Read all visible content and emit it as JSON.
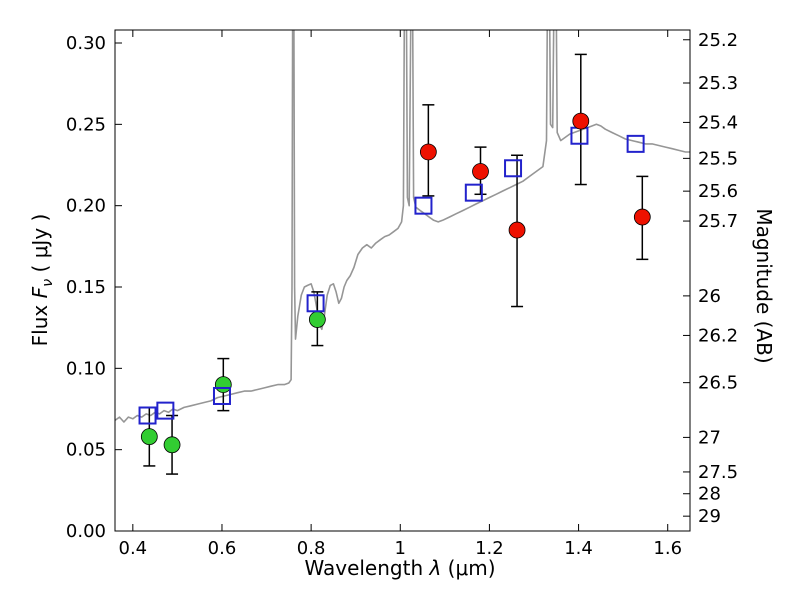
{
  "chart_data": {
    "type": "line",
    "title": "",
    "xlabel": "Wavelength λ (μm)",
    "xlabel_parts": {
      "prefix": "Wavelength ",
      "symbol": "λ",
      "suffix": " (μm)"
    },
    "ylabel_left": "Flux Fν ( μJy )",
    "ylabel_left_parts": {
      "prefix": "Flux ",
      "symbol": "F",
      "subscript": "ν",
      "suffix": " ( μJy )"
    },
    "ylabel_right": "Magnitude (AB)",
    "xlim": [
      0.36,
      1.65
    ],
    "ylim": [
      0.0,
      0.308
    ],
    "grid": false,
    "legend": null,
    "xticks": {
      "values": [
        0.4,
        0.6,
        0.8,
        1.0,
        1.2,
        1.4,
        1.6
      ],
      "labels": [
        "0.4",
        "0.6",
        "0.8",
        "1",
        "1.2",
        "1.4",
        "1.6"
      ]
    },
    "yticks_left": {
      "values": [
        0.0,
        0.05,
        0.1,
        0.15,
        0.2,
        0.25,
        0.3
      ],
      "labels": [
        "0.00",
        "0.05",
        "0.10",
        "0.15",
        "0.20",
        "0.25",
        "0.30"
      ]
    },
    "yticks_right": {
      "ab_zeropoint_microjansky": 23.9,
      "magnitudes": [
        25.2,
        25.3,
        25.4,
        25.5,
        25.6,
        25.7,
        26.0,
        26.2,
        26.5,
        27.0,
        27.5,
        28.0,
        29.0
      ],
      "labels": [
        "25.2",
        "25.3",
        "25.4",
        "25.5",
        "25.6",
        "25.7",
        "26",
        "26.2",
        "26.5",
        "27",
        "27.5",
        "28",
        "29"
      ]
    },
    "series": [
      {
        "name": "model_spectrum",
        "type": "line",
        "color": "#969696",
        "linewidth": 1.6,
        "points": [
          [
            0.36,
            0.068
          ],
          [
            0.37,
            0.07
          ],
          [
            0.38,
            0.067
          ],
          [
            0.39,
            0.07
          ],
          [
            0.4,
            0.069
          ],
          [
            0.41,
            0.071
          ],
          [
            0.42,
            0.07
          ],
          [
            0.43,
            0.072
          ],
          [
            0.44,
            0.071
          ],
          [
            0.45,
            0.073
          ],
          [
            0.46,
            0.072
          ],
          [
            0.47,
            0.074
          ],
          [
            0.48,
            0.073
          ],
          [
            0.49,
            0.075
          ],
          [
            0.5,
            0.074
          ],
          [
            0.515,
            0.076
          ],
          [
            0.53,
            0.077
          ],
          [
            0.545,
            0.078
          ],
          [
            0.56,
            0.079
          ],
          [
            0.575,
            0.08
          ],
          [
            0.59,
            0.082
          ],
          [
            0.605,
            0.083
          ],
          [
            0.62,
            0.084
          ],
          [
            0.635,
            0.085
          ],
          [
            0.65,
            0.086
          ],
          [
            0.665,
            0.086
          ],
          [
            0.68,
            0.087
          ],
          [
            0.695,
            0.088
          ],
          [
            0.71,
            0.089
          ],
          [
            0.725,
            0.09
          ],
          [
            0.74,
            0.09
          ],
          [
            0.75,
            0.091
          ],
          [
            0.755,
            0.093
          ],
          [
            0.757,
            0.15
          ],
          [
            0.759,
            0.36
          ],
          [
            0.761,
            0.36
          ],
          [
            0.763,
            0.15
          ],
          [
            0.765,
            0.118
          ],
          [
            0.77,
            0.132
          ],
          [
            0.778,
            0.145
          ],
          [
            0.785,
            0.15
          ],
          [
            0.792,
            0.151
          ],
          [
            0.8,
            0.152
          ],
          [
            0.806,
            0.147
          ],
          [
            0.812,
            0.138
          ],
          [
            0.818,
            0.128
          ],
          [
            0.824,
            0.124
          ],
          [
            0.83,
            0.133
          ],
          [
            0.836,
            0.145
          ],
          [
            0.843,
            0.151
          ],
          [
            0.85,
            0.152
          ],
          [
            0.856,
            0.147
          ],
          [
            0.862,
            0.14
          ],
          [
            0.868,
            0.143
          ],
          [
            0.874,
            0.15
          ],
          [
            0.88,
            0.154
          ],
          [
            0.888,
            0.157
          ],
          [
            0.896,
            0.162
          ],
          [
            0.905,
            0.17
          ],
          [
            0.915,
            0.174
          ],
          [
            0.925,
            0.176
          ],
          [
            0.935,
            0.174
          ],
          [
            0.945,
            0.177
          ],
          [
            0.955,
            0.179
          ],
          [
            0.965,
            0.181
          ],
          [
            0.975,
            0.182
          ],
          [
            0.985,
            0.184
          ],
          [
            0.995,
            0.186
          ],
          [
            1.003,
            0.19
          ],
          [
            1.007,
            0.2
          ],
          [
            1.01,
            0.36
          ],
          [
            1.013,
            0.36
          ],
          [
            1.016,
            0.205
          ],
          [
            1.02,
            0.2
          ],
          [
            1.024,
            0.33
          ],
          [
            1.027,
            0.36
          ],
          [
            1.03,
            0.205
          ],
          [
            1.035,
            0.199
          ],
          [
            1.045,
            0.197
          ],
          [
            1.055,
            0.195
          ],
          [
            1.065,
            0.193
          ],
          [
            1.075,
            0.191
          ],
          [
            1.085,
            0.19
          ],
          [
            1.095,
            0.191
          ],
          [
            1.11,
            0.193
          ],
          [
            1.125,
            0.195
          ],
          [
            1.14,
            0.197
          ],
          [
            1.155,
            0.199
          ],
          [
            1.17,
            0.201
          ],
          [
            1.185,
            0.203
          ],
          [
            1.2,
            0.205
          ],
          [
            1.215,
            0.207
          ],
          [
            1.23,
            0.209
          ],
          [
            1.245,
            0.211
          ],
          [
            1.26,
            0.213
          ],
          [
            1.275,
            0.215
          ],
          [
            1.29,
            0.218
          ],
          [
            1.305,
            0.221
          ],
          [
            1.32,
            0.224
          ],
          [
            1.328,
            0.24
          ],
          [
            1.331,
            0.36
          ],
          [
            1.334,
            0.36
          ],
          [
            1.337,
            0.25
          ],
          [
            1.342,
            0.248
          ],
          [
            1.346,
            0.36
          ],
          [
            1.349,
            0.36
          ],
          [
            1.352,
            0.245
          ],
          [
            1.36,
            0.24
          ],
          [
            1.37,
            0.242
          ],
          [
            1.38,
            0.244
          ],
          [
            1.39,
            0.245
          ],
          [
            1.4,
            0.246
          ],
          [
            1.41,
            0.247
          ],
          [
            1.42,
            0.248
          ],
          [
            1.43,
            0.249
          ],
          [
            1.44,
            0.25
          ],
          [
            1.45,
            0.249
          ],
          [
            1.46,
            0.247
          ],
          [
            1.475,
            0.245
          ],
          [
            1.49,
            0.243
          ],
          [
            1.505,
            0.241
          ],
          [
            1.52,
            0.24
          ],
          [
            1.535,
            0.239
          ],
          [
            1.55,
            0.238
          ],
          [
            1.565,
            0.238
          ],
          [
            1.58,
            0.237
          ],
          [
            1.595,
            0.236
          ],
          [
            1.61,
            0.235
          ],
          [
            1.625,
            0.234
          ],
          [
            1.64,
            0.233
          ],
          [
            1.65,
            0.233
          ]
        ]
      },
      {
        "name": "model_photometry",
        "type": "scatter",
        "marker": "open-square",
        "color": "#2222cc",
        "marker_size": 16,
        "points": [
          {
            "x": 0.433,
            "y": 0.071
          },
          {
            "x": 0.473,
            "y": 0.074
          },
          {
            "x": 0.6,
            "y": 0.083
          },
          {
            "x": 0.81,
            "y": 0.14
          },
          {
            "x": 1.052,
            "y": 0.2
          },
          {
            "x": 1.165,
            "y": 0.208
          },
          {
            "x": 1.253,
            "y": 0.223
          },
          {
            "x": 1.402,
            "y": 0.243
          },
          {
            "x": 1.528,
            "y": 0.238
          }
        ]
      },
      {
        "name": "observed_photometry_optical",
        "type": "scatter",
        "marker": "circle",
        "color": "#32cd32",
        "marker_radius": 8,
        "points": [
          {
            "x": 0.437,
            "y": 0.058,
            "err_lo": 0.04,
            "err_hi": 0.076
          },
          {
            "x": 0.488,
            "y": 0.053,
            "err_lo": 0.035,
            "err_hi": 0.071
          },
          {
            "x": 0.603,
            "y": 0.09,
            "err_lo": 0.074,
            "err_hi": 0.106
          },
          {
            "x": 0.814,
            "y": 0.13,
            "err_lo": 0.114,
            "err_hi": 0.147
          }
        ]
      },
      {
        "name": "observed_photometry_infrared",
        "type": "scatter",
        "marker": "circle",
        "color": "#ee1100",
        "marker_radius": 8,
        "points": [
          {
            "x": 1.063,
            "y": 0.233,
            "err_lo": 0.206,
            "err_hi": 0.262
          },
          {
            "x": 1.18,
            "y": 0.221,
            "err_lo": 0.207,
            "err_hi": 0.236
          },
          {
            "x": 1.262,
            "y": 0.185,
            "err_lo": 0.138,
            "err_hi": 0.231
          },
          {
            "x": 1.405,
            "y": 0.252,
            "err_lo": 0.213,
            "err_hi": 0.293
          },
          {
            "x": 1.543,
            "y": 0.193,
            "err_lo": 0.167,
            "err_hi": 0.218
          }
        ]
      }
    ],
    "style": {
      "axis_color": "#000000",
      "errorbar_color": "#000000",
      "background": "#ffffff"
    }
  }
}
